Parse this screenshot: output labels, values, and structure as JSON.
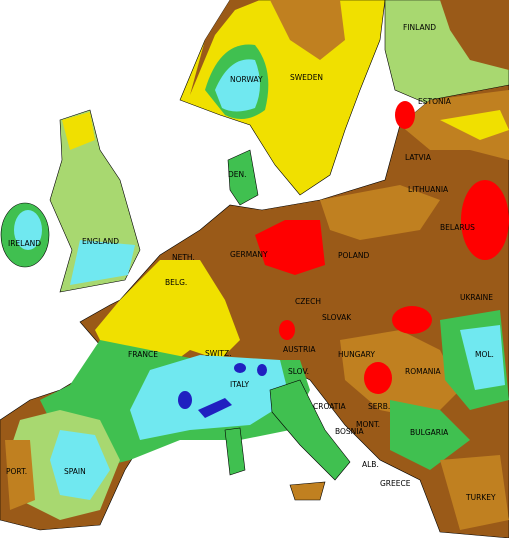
{
  "countries": [
    "FINLAND",
    "NORWAY",
    "SWEDEN",
    "ESTONIA",
    "LATVIA",
    "DEN.",
    "LITHUANIA",
    "IRELAND",
    "ENGLAND",
    "GERMANY",
    "POLAND",
    "BELARUS",
    "NETH.",
    "BELG.",
    "CZECH",
    "SLOVAK",
    "UKRAINE",
    "FRANCE",
    "SWITZ.",
    "AUSTRIA",
    "HUNGARY",
    "MOL.",
    "ROMANIA",
    "ITALY",
    "SLOV.",
    "CROATIA",
    "BOSNIA",
    "SERB.",
    "MONT.",
    "BULGARIA",
    "ALB.",
    "GREECE",
    "TURKEY",
    "PORT.",
    "SPAIN"
  ]
}
